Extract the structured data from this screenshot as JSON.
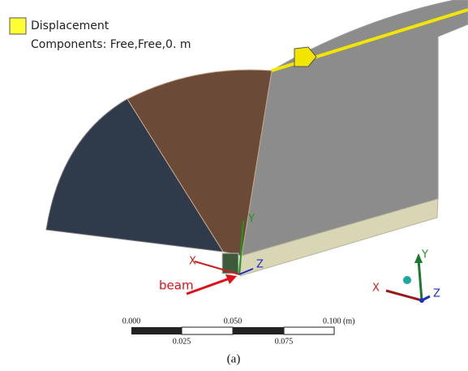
{
  "legend": {
    "title": "Displacement",
    "detail": "Components: Free,Free,0. m"
  },
  "model_triad": {
    "x": "X",
    "y": "Y",
    "z": "Z"
  },
  "annotation": "beam",
  "view_triad": {
    "x": "X",
    "y": "Y",
    "z": "Z"
  },
  "scale_bar": {
    "top_labels": [
      "0.000",
      "0.050",
      "0.100 (m)"
    ],
    "bottom_labels": [
      "0.025",
      "0.075"
    ]
  },
  "caption": "(a)"
}
